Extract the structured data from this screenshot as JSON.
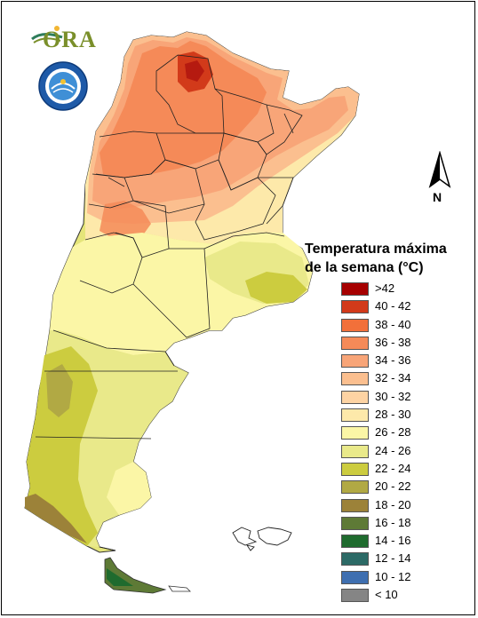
{
  "map": {
    "title_line1": "Temperatura máxima",
    "title_line2": "de la semana (°C)",
    "north_letter": "N",
    "logo_text": "ORA"
  },
  "legend": [
    {
      "label": ">42",
      "color": "#a60000"
    },
    {
      "label": "40 - 42",
      "color": "#d23a1a"
    },
    {
      "label": "38 - 40",
      "color": "#f2703a"
    },
    {
      "label": "36 - 38",
      "color": "#f58a58"
    },
    {
      "label": "34 - 36",
      "color": "#f8a578"
    },
    {
      "label": "32 - 34",
      "color": "#fbbf8f"
    },
    {
      "label": "30 - 32",
      "color": "#fdd3a3"
    },
    {
      "label": "28 - 30",
      "color": "#fde9aa"
    },
    {
      "label": "26 - 28",
      "color": "#fbf6a6"
    },
    {
      "label": "24 - 26",
      "color": "#e9e98a"
    },
    {
      "label": "22 - 24",
      "color": "#cccc3f"
    },
    {
      "label": "20 - 22",
      "color": "#b1a944"
    },
    {
      "label": "18 - 20",
      "color": "#9c8239"
    },
    {
      "label": "16 - 18",
      "color": "#5e7a36"
    },
    {
      "label": "14 - 16",
      "color": "#1f6b2e"
    },
    {
      "label": "12 - 14",
      "color": "#2c6a66"
    },
    {
      "label": "10 - 12",
      "color": "#3f6fb0"
    },
    {
      "label": "< 10",
      "color": "#858585"
    }
  ]
}
